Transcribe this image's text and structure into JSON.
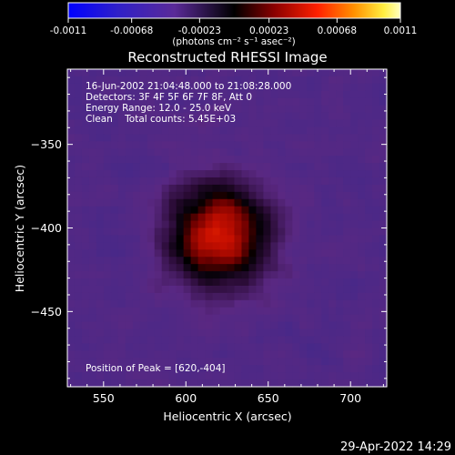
{
  "chart_data": {
    "type": "heatmap",
    "title": "Reconstructed RHESSI Image",
    "xlabel": "Heliocentric X (arcsec)",
    "ylabel": "Heliocentric Y (arcsec)",
    "xlim": [
      528,
      722
    ],
    "ylim": [
      -495,
      -305
    ],
    "x_ticks": [
      550,
      600,
      650,
      700
    ],
    "y_ticks": [
      -350,
      -400,
      -450
    ],
    "peak": [
      620,
      -404
    ],
    "colorbar": {
      "range": [
        -0.0011,
        0.0011
      ],
      "ticks": [
        "-0.0011",
        "-0.00068",
        "-0.00023",
        "0.00023",
        "0.00068",
        "0.0011"
      ],
      "label": "(photons cm⁻² s⁻¹ asec⁻²)"
    },
    "annotations": [
      "16-Jun-2002 21:04:48.000 to 21:08:28.000",
      "Detectors: 3F 4F 5F 6F 7F 8F, Att 0",
      "Energy Range: 12.0 - 25.0 keV",
      "Clean    Total counts: 5.45E+03"
    ],
    "peak_label": "Position of Peak = [620,-404]"
  },
  "footer": {
    "timestamp": "29-Apr-2022 14:29"
  }
}
